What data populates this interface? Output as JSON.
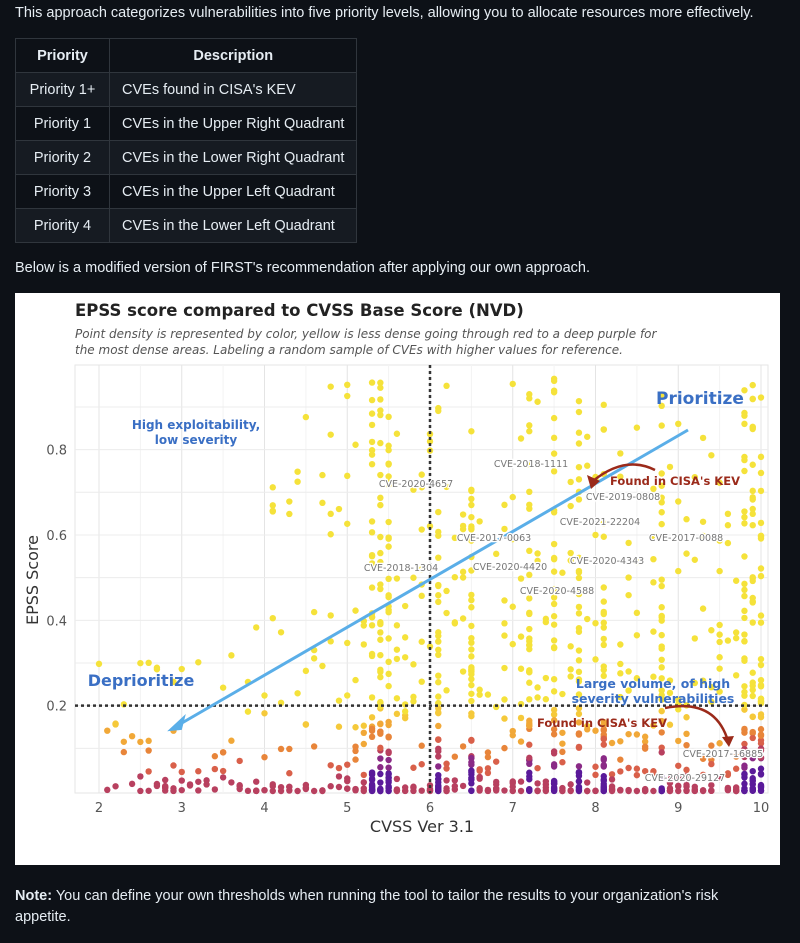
{
  "intro_text": "This approach categorizes vulnerabilities into five priority levels, allowing you to allocate resources more effectively.",
  "table": {
    "headers": [
      "Priority",
      "Description"
    ],
    "rows": [
      [
        "Priority 1+",
        "CVEs found in CISA's KEV"
      ],
      [
        "Priority 1",
        "CVEs in the Upper Right Quadrant"
      ],
      [
        "Priority 2",
        "CVEs in the Lower Right Quadrant"
      ],
      [
        "Priority 3",
        "CVEs in the Upper Left Quadrant"
      ],
      [
        "Priority 4",
        "CVEs in the Lower Left Quadrant"
      ]
    ]
  },
  "below_text": "Below is a modified version of FIRST's recommendation after applying our own approach.",
  "figure": {
    "title": "EPSS score compared to CVSS Base Score (NVD)",
    "subtitle_line1": "Point density is represented by color, yellow is less dense going through red to a deep purple for",
    "subtitle_line2": "the most dense areas. Labeling a random sample of CVEs with higher values for reference.",
    "xlabel": "CVSS Ver 3.1",
    "ylabel": "EPSS Score",
    "x_ticks": [
      "2",
      "3",
      "4",
      "5",
      "6",
      "7",
      "8",
      "9",
      "10"
    ],
    "y_ticks": [
      "0.2",
      "0.4",
      "0.6",
      "0.8"
    ],
    "xlim": [
      1.7,
      10.1
    ],
    "ylim": [
      0,
      1
    ],
    "thresholds": {
      "cvss": 6,
      "epss": 0.2
    },
    "grid": true,
    "annotations": {
      "prioritize": "Prioritize",
      "deprioritize": "Deprioritize",
      "high_exploit_1": "High exploitability,",
      "high_exploit_2": "low severity",
      "large_volume_1": "Large volume, of high",
      "large_volume_2": "severity vulnerabilities",
      "kev_top": "Found in CISA's KEV",
      "kev_bottom": "Found in CISA's KEV"
    },
    "cve_labels": [
      "CVE-2020-4657",
      "CVE-2018-1111",
      "CVE-2019-0808",
      "CVE-2021-22204",
      "CVE-2017-0063",
      "CVE-2017-0088",
      "CVE-2018-1304",
      "CVE-2020-4420",
      "CVE-2020-4343",
      "CVE-2020-4588",
      "CVE-2017-16885",
      "CVE-2020-29127"
    ],
    "colors": {
      "line": "#5aaee8",
      "annotation_blue": "#3a6fc4",
      "kev_red": "#9b2a1a",
      "low_density": "#f5e23a",
      "high_density": "#5a1a9a"
    }
  },
  "note": {
    "label": "Note:",
    "text": " You can define your own thresholds when running the tool to tailor the results to your organization's risk appetite."
  }
}
